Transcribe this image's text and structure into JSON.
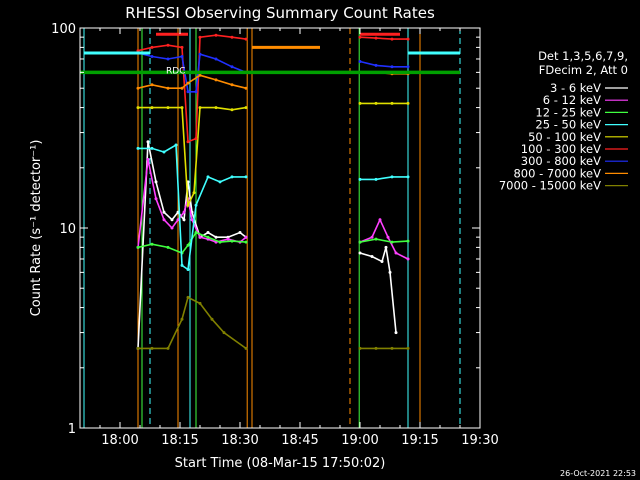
{
  "chart_data": {
    "type": "line",
    "title": "RHESSI Observing Summary Count Rates",
    "xlabel": "Start Time (08-Mar-15 17:50:02)",
    "ylabel": "Count Rate (s⁻¹ detector⁻¹)",
    "y_scale": "log",
    "ylim": [
      1,
      100
    ],
    "y_ticks": [
      {
        "v": 1,
        "label": "1"
      },
      {
        "v": 10,
        "label": "10"
      },
      {
        "v": 100,
        "label": "100"
      }
    ],
    "x_unit": "minutes",
    "xlim": [
      1070,
      1170
    ],
    "x_ticks": [
      {
        "v": 1080,
        "label": "18:00"
      },
      {
        "v": 1095,
        "label": "18:15"
      },
      {
        "v": 1110,
        "label": "18:30"
      },
      {
        "v": 1125,
        "label": "18:45"
      },
      {
        "v": 1140,
        "label": "19:00"
      },
      {
        "v": 1155,
        "label": "19:15"
      },
      {
        "v": 1170,
        "label": "19:30"
      }
    ],
    "legend_header": [
      "Det 1,3,5,6,7,9,",
      "FDecim 2, Att 0"
    ],
    "legend_position": "right",
    "annotation": "RDC",
    "series": [
      {
        "name": "3 - 6 keV",
        "color": "#ffffff",
        "points": [
          [
            1084.5,
            2.5
          ],
          [
            1087,
            27
          ],
          [
            1089,
            17
          ],
          [
            1091,
            12
          ],
          [
            1093,
            11
          ],
          [
            1094.5,
            12
          ],
          [
            1096,
            11
          ],
          [
            1097,
            17
          ],
          [
            1098,
            12
          ],
          [
            1100,
            9
          ],
          [
            1102,
            9.5
          ],
          [
            1104,
            9
          ],
          [
            1107,
            9
          ],
          [
            1110,
            9.5
          ],
          [
            1111.5,
            9
          ],
          [
            null,
            null
          ],
          [
            1140,
            7.5
          ],
          [
            1143,
            7.2
          ],
          [
            1145.5,
            6.8
          ],
          [
            1146.5,
            8
          ],
          [
            1147.5,
            6
          ],
          [
            1149,
            3
          ]
        ]
      },
      {
        "name": "6 - 12 keV",
        "color": "#ff40ff",
        "points": [
          [
            1084.5,
            8
          ],
          [
            1087,
            22
          ],
          [
            1089,
            14
          ],
          [
            1091,
            11
          ],
          [
            1093,
            10
          ],
          [
            1094.5,
            11
          ],
          [
            1096,
            12
          ],
          [
            1097,
            14
          ],
          [
            1098,
            11
          ],
          [
            1100,
            9
          ],
          [
            1102,
            8.8
          ],
          [
            1104,
            8.5
          ],
          [
            1107,
            8.8
          ],
          [
            1110,
            8.5
          ],
          [
            1111.5,
            9
          ],
          [
            null,
            null
          ],
          [
            1140,
            8.5
          ],
          [
            1143,
            9
          ],
          [
            1145,
            11
          ],
          [
            1147,
            9
          ],
          [
            1149,
            7.5
          ],
          [
            1152,
            7
          ]
        ]
      },
      {
        "name": "12 - 25 keV",
        "color": "#40ff40",
        "points": [
          [
            1084.5,
            8
          ],
          [
            1088,
            8.3
          ],
          [
            1092,
            8
          ],
          [
            1095.5,
            7.5
          ],
          [
            1097,
            8.2
          ],
          [
            1099,
            9.5
          ],
          [
            1102,
            9
          ],
          [
            1105,
            8.5
          ],
          [
            1108,
            8.6
          ],
          [
            1111.5,
            8.5
          ],
          [
            null,
            null
          ],
          [
            1140,
            8.5
          ],
          [
            1144,
            8.8
          ],
          [
            1148,
            8.5
          ],
          [
            1152,
            8.6
          ]
        ]
      },
      {
        "name": "25 - 50 keV",
        "color": "#40ffff",
        "points": [
          [
            1084.5,
            25
          ],
          [
            1088,
            25
          ],
          [
            1091,
            24
          ],
          [
            1094,
            26
          ],
          [
            1095.5,
            6.5
          ],
          [
            1097,
            6.2
          ],
          [
            1099,
            13
          ],
          [
            1102,
            18
          ],
          [
            1105,
            17
          ],
          [
            1108,
            18
          ],
          [
            1111.5,
            18
          ],
          [
            null,
            null
          ],
          [
            1140,
            17.5
          ],
          [
            1144,
            17.5
          ],
          [
            1148,
            18
          ],
          [
            1152,
            18
          ]
        ]
      },
      {
        "name": "50 - 100 keV",
        "color": "#e0e000",
        "points": [
          [
            1084.5,
            40
          ],
          [
            1088,
            40
          ],
          [
            1092,
            40
          ],
          [
            1095.5,
            40
          ],
          [
            1097,
            13
          ],
          [
            1098.5,
            15
          ],
          [
            1100,
            40
          ],
          [
            1104,
            40
          ],
          [
            1108,
            39
          ],
          [
            1111.5,
            40
          ],
          [
            null,
            null
          ],
          [
            1140,
            42
          ],
          [
            1144,
            42
          ],
          [
            1148,
            42
          ],
          [
            1152,
            42
          ]
        ]
      },
      {
        "name": "100 - 300 keV",
        "color": "#ff2020",
        "points": [
          [
            1084.5,
            77
          ],
          [
            1088,
            80
          ],
          [
            1092,
            82
          ],
          [
            1095.5,
            80
          ],
          [
            1097,
            27
          ],
          [
            1099,
            28
          ],
          [
            1100,
            90
          ],
          [
            1104,
            92
          ],
          [
            1108,
            90
          ],
          [
            1111.5,
            88
          ],
          [
            null,
            null
          ],
          [
            1140,
            90
          ],
          [
            1144,
            89
          ],
          [
            1148,
            88
          ],
          [
            1152,
            88
          ]
        ]
      },
      {
        "name": "300 - 800 keV",
        "color": "#2030ff",
        "points": [
          [
            1084.5,
            75
          ],
          [
            1088,
            72
          ],
          [
            1092,
            70
          ],
          [
            1095.5,
            72
          ],
          [
            1097,
            48
          ],
          [
            1099,
            48
          ],
          [
            1100,
            74
          ],
          [
            1104,
            70
          ],
          [
            1108,
            64
          ],
          [
            1111.5,
            60
          ],
          [
            null,
            null
          ],
          [
            1140,
            68
          ],
          [
            1144,
            65
          ],
          [
            1148,
            64
          ],
          [
            1152,
            64
          ]
        ]
      },
      {
        "name": "800 - 7000 keV",
        "color": "#ff8c00",
        "points": [
          [
            1084.5,
            50
          ],
          [
            1088,
            52
          ],
          [
            1092,
            50
          ],
          [
            1095.5,
            50
          ],
          [
            1097,
            53
          ],
          [
            1100,
            58
          ],
          [
            1104,
            55
          ],
          [
            1108,
            52
          ],
          [
            1111.5,
            50
          ],
          [
            null,
            null
          ],
          [
            1140,
            60
          ],
          [
            1144,
            60
          ],
          [
            1148,
            59
          ],
          [
            1152,
            59
          ]
        ]
      },
      {
        "name": "7000 - 15000 keV",
        "color": "#808000",
        "points": [
          [
            1084.5,
            2.5
          ],
          [
            1088,
            2.5
          ],
          [
            1092,
            2.5
          ],
          [
            1095.5,
            3.5
          ],
          [
            1097,
            4.5
          ],
          [
            1100,
            4.2
          ],
          [
            1103,
            3.5
          ],
          [
            1106,
            3.0
          ],
          [
            1111.5,
            2.5
          ],
          [
            null,
            null
          ],
          [
            1140,
            2.5
          ],
          [
            1144,
            2.5
          ],
          [
            1148,
            2.5
          ],
          [
            1152,
            2.5
          ]
        ]
      }
    ],
    "markers": [
      {
        "color": "#40ffff",
        "x": 1071,
        "dash": false
      },
      {
        "color": "#40ffff",
        "x": 1087.5,
        "dash": true
      },
      {
        "color": "#40ffff",
        "x": 1097.5,
        "dash": false
      },
      {
        "color": "#40ffff",
        "x": 1152,
        "dash": false
      },
      {
        "color": "#40ffff",
        "x": 1165,
        "dash": true
      },
      {
        "color": "#ff8c00",
        "x": 1084.5,
        "dash": false
      },
      {
        "color": "#ff8c00",
        "x": 1094.5,
        "dash": false
      },
      {
        "color": "#ff8c00",
        "x": 1111.8,
        "dash": false
      },
      {
        "color": "#ff8c00",
        "x": 1113,
        "dash": false
      },
      {
        "color": "#ff8c00",
        "x": 1137.5,
        "dash": true
      },
      {
        "color": "#ff8c00",
        "x": 1155,
        "dash": false
      },
      {
        "color": "#40ff40",
        "x": 1085.5,
        "dash": false
      },
      {
        "color": "#40ff40",
        "x": 1099,
        "dash": false
      },
      {
        "color": "#40ff40",
        "x": 1139.8,
        "dash": false
      }
    ],
    "hbars": [
      {
        "color": "#40ffff",
        "x0": 1071,
        "x1": 1087.5,
        "y": 75
      },
      {
        "color": "#40ffff",
        "x0": 1152,
        "x1": 1165,
        "y": 75
      },
      {
        "color": "#ff8c00",
        "x0": 1113,
        "x1": 1130,
        "y": 80
      },
      {
        "color": "#ff2020",
        "x0": 1089,
        "x1": 1097,
        "y": 93
      },
      {
        "color": "#ff2020",
        "x0": 1140,
        "x1": 1150,
        "y": 93
      },
      {
        "color": "#00a000",
        "x0": 1070,
        "x1": 1165,
        "y": 60
      }
    ]
  },
  "footer_date": "26-Oct-2021 22:53"
}
